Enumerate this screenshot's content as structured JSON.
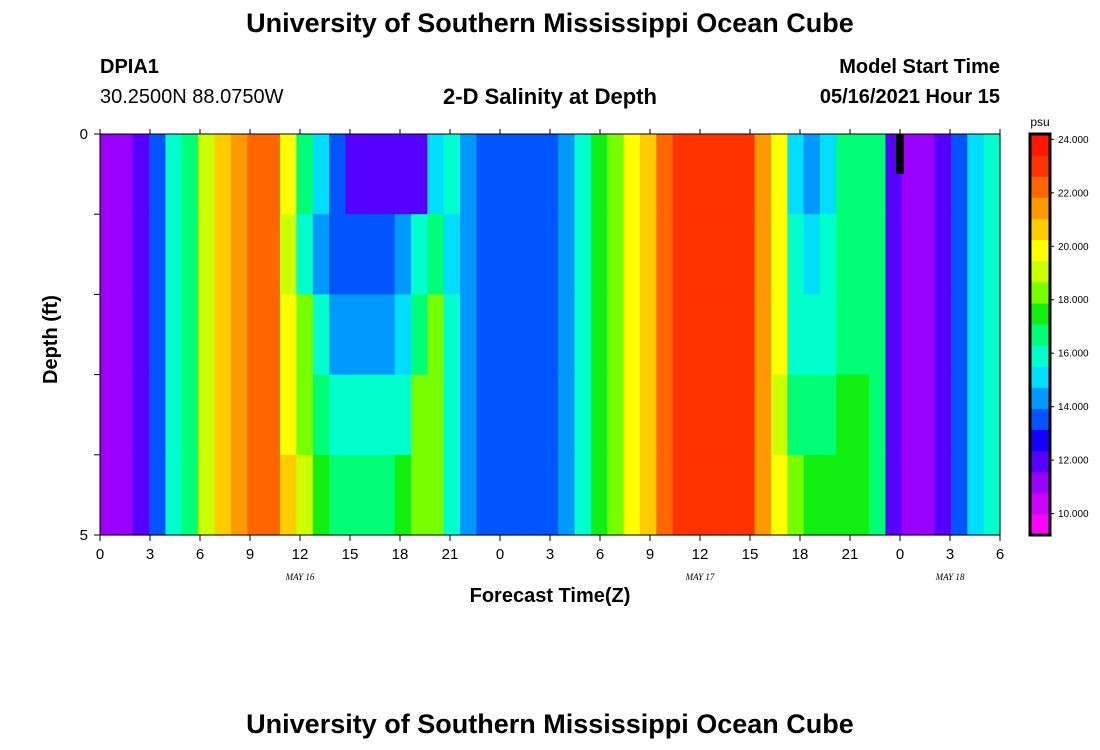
{
  "header": {
    "title_top": "University of Southern Mississippi Ocean Cube",
    "title_bottom": "University of Southern Mississippi Ocean Cube",
    "station_id": "DPIA1",
    "station_coords": "30.2500N  88.0750W",
    "model_start_label": "Model Start Time",
    "model_start_value": "05/16/2021 Hour 15"
  },
  "colors": {
    "palette": [
      "#ff00ff",
      "#cc00ff",
      "#9900ff",
      "#5500ff",
      "#1500ff",
      "#0055ff",
      "#0099ff",
      "#00ddff",
      "#00ffcc",
      "#00ff77",
      "#11ee11",
      "#77ff00",
      "#ccff00",
      "#ffff00",
      "#ffcc00",
      "#ff9900",
      "#ff6600",
      "#ff3300",
      "#ff1500"
    ]
  },
  "chart_data": {
    "type": "heatmap",
    "title": "2-D Salinity at Depth",
    "xlabel": "Forecast Time(Z)",
    "ylabel": "Depth (ft)",
    "x_ticks": [
      "0",
      "3",
      "6",
      "9",
      "12",
      "15",
      "18",
      "21",
      "0",
      "3",
      "6",
      "9",
      "12",
      "15",
      "18",
      "21",
      "0",
      "3",
      "6"
    ],
    "x_range_hours": [
      0,
      54
    ],
    "date_labels": [
      {
        "text": "MAY 16",
        "hour": 12
      },
      {
        "text": "MAY 17",
        "hour": 36
      },
      {
        "text": "MAY 18",
        "hour": 51
      }
    ],
    "y_ticks": [
      "0",
      "5"
    ],
    "y_range": [
      0,
      5
    ],
    "depth_levels": 5,
    "model_start_hour": 48,
    "colorbar": {
      "unit": "psu",
      "min": 9.2,
      "max": 24.2,
      "tick_labels": [
        "24.000",
        "22.000",
        "20.000",
        "18.000",
        "16.000",
        "14.000",
        "12.000",
        "10.000"
      ],
      "tick_values": [
        24,
        22,
        20,
        18,
        16,
        14,
        12,
        10
      ]
    },
    "salinity_psu": [
      [
        10.5,
        10.5,
        11.5,
        13.5,
        16,
        17,
        19.5,
        21,
        22,
        22.5,
        22.5,
        20,
        17,
        15,
        13.5,
        12,
        11.5,
        11.5,
        11.5,
        12,
        15,
        16,
        14.5,
        13.5,
        13,
        13,
        13,
        13,
        14,
        16,
        17.5,
        18.5,
        20,
        21,
        22.5,
        23.5,
        23.5,
        23.5,
        23.5,
        23,
        22,
        20,
        15,
        14,
        15,
        17,
        17,
        17,
        12,
        10.5,
        10.5,
        11.5,
        13,
        15,
        16
      ],
      [
        10.5,
        10.5,
        11.5,
        13.5,
        16,
        17,
        19.5,
        21,
        22,
        22.5,
        22.5,
        19,
        16,
        14.5,
        13.5,
        13.5,
        13.5,
        13.5,
        14.5,
        16,
        17,
        15,
        14,
        13,
        13,
        13,
        13,
        13,
        14,
        16,
        17.5,
        18.5,
        20,
        21,
        22.5,
        23.5,
        23.5,
        23.5,
        23.5,
        23,
        21.5,
        20,
        15.5,
        15,
        15.5,
        17,
        17,
        17,
        12,
        10.5,
        10.5,
        11.5,
        13,
        15,
        16
      ],
      [
        10.5,
        10.5,
        11.5,
        13.5,
        16,
        17,
        19.5,
        21,
        22,
        22.5,
        22.5,
        20,
        18,
        16,
        14,
        14,
        14,
        14,
        15,
        17,
        18,
        15.5,
        14,
        13,
        13,
        13,
        13,
        13,
        14,
        16,
        17.5,
        18.5,
        20,
        21,
        22.5,
        23.5,
        23.5,
        23.5,
        23.5,
        23,
        22,
        20,
        16,
        16,
        16,
        17,
        17,
        17,
        12,
        10.5,
        10.5,
        11.5,
        13,
        15,
        16
      ],
      [
        10.5,
        10.5,
        11.5,
        13.5,
        16,
        17,
        19.5,
        21,
        22,
        22.5,
        22.5,
        20,
        18,
        17,
        16,
        15.5,
        15.5,
        15.5,
        16,
        18,
        18.5,
        16,
        14,
        13,
        13,
        13,
        13,
        13,
        14,
        16,
        17.5,
        18.5,
        20,
        21,
        22.5,
        23.5,
        23.5,
        23.5,
        23.5,
        23,
        22,
        19.5,
        17,
        17,
        17,
        17.5,
        17.5,
        17,
        12,
        10.5,
        10.5,
        11.5,
        13,
        15,
        16
      ],
      [
        10.5,
        10.5,
        11.5,
        13.5,
        16,
        17,
        19.5,
        21,
        22,
        22.5,
        22.5,
        21,
        19,
        17.5,
        17,
        16.5,
        16.5,
        17,
        17.5,
        18.5,
        18.5,
        16,
        14,
        13,
        13,
        13,
        13,
        13,
        14,
        16,
        17.5,
        18.5,
        20,
        21,
        22.5,
        23.5,
        23.5,
        23.5,
        23.5,
        23,
        22,
        20,
        18,
        17.5,
        17.5,
        17.5,
        17.5,
        17,
        12,
        10.5,
        10.5,
        11.5,
        13,
        15,
        16
      ]
    ]
  }
}
